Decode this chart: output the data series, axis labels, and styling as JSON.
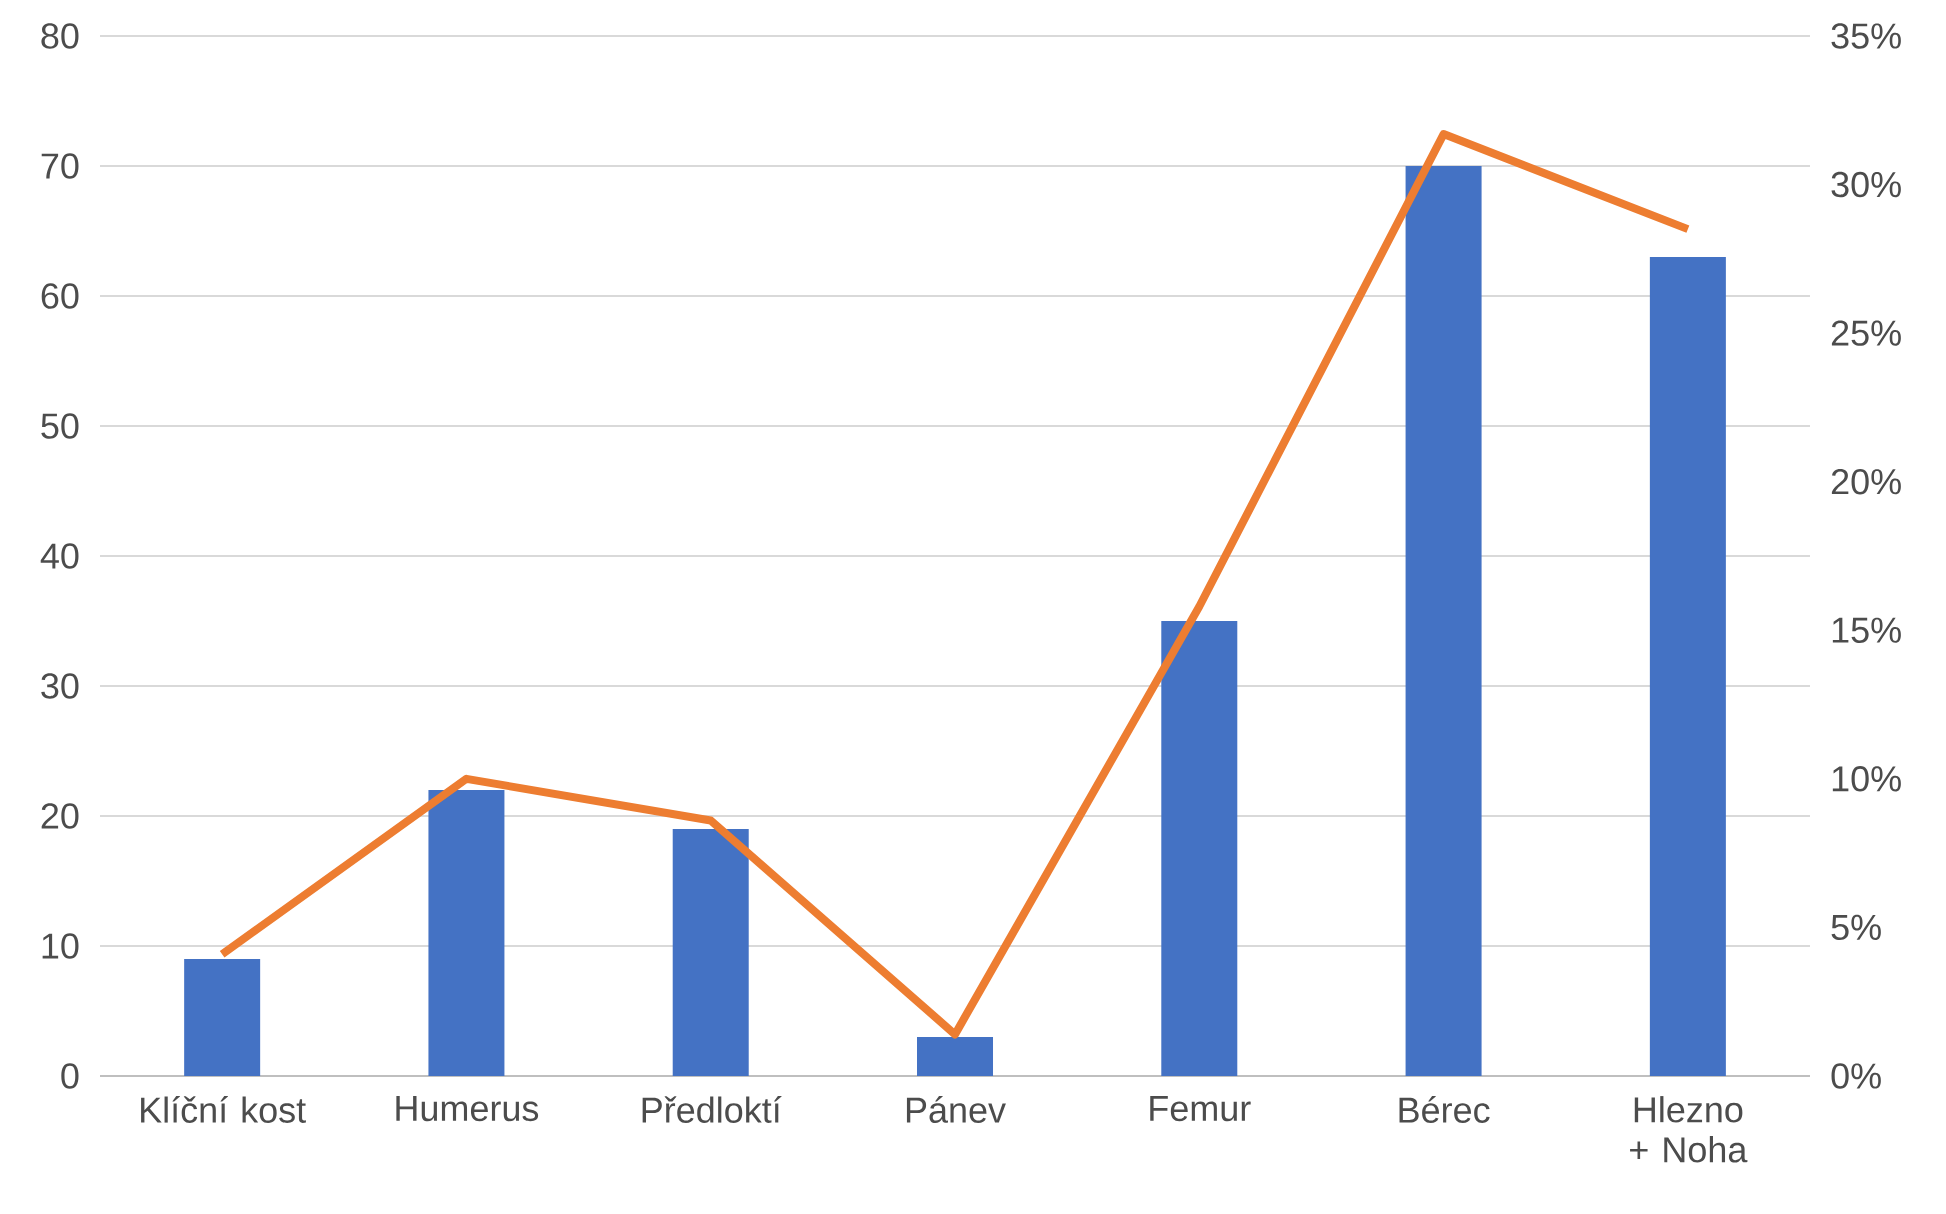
{
  "chart_data": {
    "type": "bar",
    "categories": [
      "Klíční kost",
      "Humerus",
      "Předloktí",
      "Pánev",
      "Femur",
      "Bérec",
      "Hlezno + Noha"
    ],
    "series": [
      {
        "color": "#4472c4",
        "values": [
          9,
          22,
          19,
          3,
          35,
          70,
          63
        ]
      },
      {
        "type": "line",
        "axis": "y2",
        "color": "#ed7d31",
        "values": [
          4.1,
          10.0,
          8.6,
          1.4,
          15.8,
          31.7,
          28.5
        ]
      }
    ],
    "ylim": [
      0,
      80
    ],
    "yticks": [
      0,
      10,
      20,
      30,
      40,
      50,
      60,
      70,
      80
    ],
    "y2lim": [
      0,
      35
    ],
    "y2ticks": [
      {
        "value": 0,
        "label": "0%"
      },
      {
        "value": 5,
        "label": "5%"
      },
      {
        "value": 10,
        "label": "10%"
      },
      {
        "value": 15,
        "label": "15%"
      },
      {
        "value": 20,
        "label": "20%"
      },
      {
        "value": 25,
        "label": "25%"
      },
      {
        "value": 30,
        "label": "30%"
      },
      {
        "value": 35,
        "label": "35%"
      }
    ],
    "grid": "y",
    "marker": "none",
    "line_style": "solid"
  }
}
